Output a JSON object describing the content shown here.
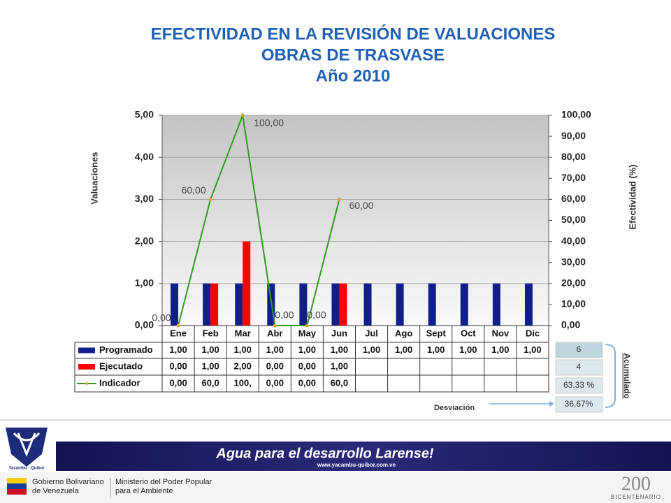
{
  "chart_data": {
    "type": "bar",
    "title": [
      "EFECTIVIDAD EN LA REVISIÓN DE VALUACIONES",
      "OBRAS DE TRASVASE",
      "Año 2010"
    ],
    "y_label": "Valuaciones",
    "y2_label": "Efectividad  (%)",
    "categories": [
      "Ene",
      "Feb",
      "Mar",
      "Abr",
      "May",
      "Jun",
      "Jul",
      "Ago",
      "Sept",
      "Oct",
      "Nov",
      "Dic"
    ],
    "series": [
      {
        "name": "Programado",
        "type": "bar",
        "color": "#0f1f8a",
        "values": [
          1,
          1,
          1,
          1,
          1,
          1,
          1,
          1,
          1,
          1,
          1,
          1
        ],
        "value_labels": [
          "1,00",
          "1,00",
          "1,00",
          "1,00",
          "1,00",
          "1,00",
          "1,00",
          "1,00",
          "1,00",
          "1,00",
          "1,00",
          "1,00"
        ]
      },
      {
        "name": "Ejecutado",
        "type": "bar",
        "color": "#ff0000",
        "values": [
          0,
          1,
          2,
          0,
          0,
          1,
          null,
          null,
          null,
          null,
          null,
          null
        ],
        "value_labels": [
          "0,00",
          "1,00",
          "2,00",
          "0,00",
          "0,00",
          "1,00",
          null,
          null,
          null,
          null,
          null,
          null
        ]
      },
      {
        "name": "Indicador",
        "type": "line",
        "axis": "y2",
        "color": "#2e9a1e",
        "marker_color": "#f0a020",
        "values": [
          0,
          60,
          100,
          0,
          0,
          60,
          null,
          null,
          null,
          null,
          null,
          null
        ],
        "value_labels": [
          "0,00",
          "60,00",
          "100,00",
          "0,00",
          "0,00",
          "60,00",
          null,
          null,
          null,
          null,
          null,
          null
        ],
        "table_labels": [
          "0,00",
          "60,0",
          "100,",
          "0,00",
          "0,00",
          "60,0",
          null,
          null,
          null,
          null,
          null,
          null
        ]
      }
    ],
    "ylim": [
      0,
      5
    ],
    "yticks": [
      {
        "value": 0,
        "label": "0,00"
      },
      {
        "value": 1,
        "label": "1,00"
      },
      {
        "value": 2,
        "label": "2,00"
      },
      {
        "value": 3,
        "label": "3,00"
      },
      {
        "value": 4,
        "label": "4,00"
      },
      {
        "value": 5,
        "label": "5,00"
      }
    ],
    "y2lim": [
      0,
      100
    ],
    "y2ticks": [
      {
        "value": 0,
        "label": "0,00"
      },
      {
        "value": 10,
        "label": "10,00"
      },
      {
        "value": 20,
        "label": "20,00"
      },
      {
        "value": 30,
        "label": "30,00"
      },
      {
        "value": 40,
        "label": "40,00"
      },
      {
        "value": 50,
        "label": "50,00"
      },
      {
        "value": 60,
        "label": "60,00"
      },
      {
        "value": 70,
        "label": "70,00"
      },
      {
        "value": 80,
        "label": "80,00"
      },
      {
        "value": 90,
        "label": "90,00"
      },
      {
        "value": 100,
        "label": "100,00"
      }
    ],
    "grid": true
  },
  "acumulado": {
    "label": "Acumulado",
    "values": [
      "6",
      "4",
      "63,33 %",
      "36,67%"
    ]
  },
  "desviacion": "Desviación",
  "footer": {
    "slogan": "Agua para el desarrollo Larense!",
    "url": "www.yacambu-quibor.com.ve",
    "logo": "Yacambú - Quibor",
    "gobierno": [
      "Gobierno Bolivariano",
      "de Venezuela"
    ],
    "ministerio": [
      "Ministerio del Poder Popular",
      "para el Ambiente"
    ],
    "bicentenario": "BICENTENARIO"
  }
}
